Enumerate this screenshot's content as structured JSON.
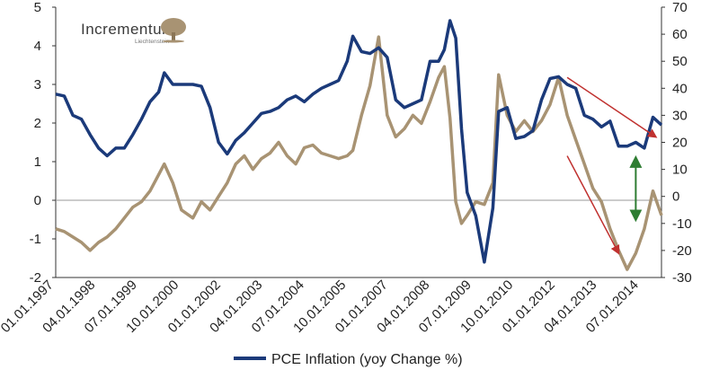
{
  "chart_data": {
    "type": "line",
    "title": "",
    "legend": {
      "position": "bottom-center",
      "entries": [
        {
          "name": "PCE Inflation (yoy Change %)",
          "color": "#1b3a7a"
        }
      ]
    },
    "logo": {
      "name": "Incrementum",
      "subtitle": "Liechtenstein"
    },
    "x_tick_labels": [
      "01.01.1997",
      "04.01.1998",
      "07.01.1999",
      "10.01.2000",
      "01.01.2002",
      "04.01.2003",
      "07.01.2004",
      "10.01.2005",
      "01.01.2007",
      "04.01.2008",
      "07.01.2009",
      "10.01.2010",
      "01.01.2012",
      "04.01.2013",
      "07.01.2014"
    ],
    "x_range": [
      "1997-01",
      "2014-09"
    ],
    "y_left": {
      "min": -2,
      "max": 5,
      "ticks": [
        -2,
        -1,
        0,
        1,
        2,
        3,
        4,
        5
      ],
      "tick_labels": [
        "-2",
        "-1",
        "0",
        "1",
        "2",
        "3",
        "4",
        "5"
      ]
    },
    "y_right": {
      "min": -30,
      "max": 70,
      "ticks": [
        -30,
        -20,
        -10,
        0,
        10,
        20,
        30,
        40,
        50,
        60,
        70
      ]
    },
    "zero_line_left": 0,
    "series": [
      {
        "name": "PCE Inflation (yoy Change %)",
        "axis": "left",
        "color": "#1b3a7a",
        "points": [
          [
            "1997-01",
            2.75
          ],
          [
            "1997-04",
            2.7
          ],
          [
            "1997-07",
            2.2
          ],
          [
            "1997-10",
            2.1
          ],
          [
            "1998-01",
            1.7
          ],
          [
            "1998-04",
            1.35
          ],
          [
            "1998-07",
            1.15
          ],
          [
            "1998-10",
            1.35
          ],
          [
            "1999-01",
            1.35
          ],
          [
            "1999-04",
            1.7
          ],
          [
            "1999-07",
            2.1
          ],
          [
            "1999-10",
            2.55
          ],
          [
            "2000-01",
            2.8
          ],
          [
            "2000-03",
            3.3
          ],
          [
            "2000-06",
            3.0
          ],
          [
            "2000-09",
            3.0
          ],
          [
            "2001-01",
            3.0
          ],
          [
            "2001-04",
            2.95
          ],
          [
            "2001-07",
            2.4
          ],
          [
            "2001-10",
            1.5
          ],
          [
            "2002-01",
            1.2
          ],
          [
            "2002-04",
            1.55
          ],
          [
            "2002-07",
            1.75
          ],
          [
            "2002-10",
            2.0
          ],
          [
            "2003-01",
            2.25
          ],
          [
            "2003-04",
            2.3
          ],
          [
            "2003-07",
            2.4
          ],
          [
            "2003-10",
            2.6
          ],
          [
            "2004-01",
            2.7
          ],
          [
            "2004-04",
            2.55
          ],
          [
            "2004-07",
            2.75
          ],
          [
            "2004-10",
            2.9
          ],
          [
            "2005-01",
            3.0
          ],
          [
            "2005-04",
            3.1
          ],
          [
            "2005-07",
            3.6
          ],
          [
            "2005-09",
            4.25
          ],
          [
            "2005-12",
            3.85
          ],
          [
            "2006-03",
            3.8
          ],
          [
            "2006-06",
            3.95
          ],
          [
            "2006-09",
            3.7
          ],
          [
            "2006-12",
            2.6
          ],
          [
            "2007-03",
            2.4
          ],
          [
            "2007-06",
            2.5
          ],
          [
            "2007-09",
            2.6
          ],
          [
            "2007-12",
            3.6
          ],
          [
            "2008-03",
            3.6
          ],
          [
            "2008-05",
            3.9
          ],
          [
            "2008-07",
            4.65
          ],
          [
            "2008-09",
            4.2
          ],
          [
            "2008-11",
            1.85
          ],
          [
            "2009-01",
            0.2
          ],
          [
            "2009-04",
            -0.4
          ],
          [
            "2009-07",
            -1.6
          ],
          [
            "2009-10",
            -0.2
          ],
          [
            "2009-12",
            2.3
          ],
          [
            "2010-03",
            2.4
          ],
          [
            "2010-06",
            1.6
          ],
          [
            "2010-09",
            1.65
          ],
          [
            "2010-12",
            1.8
          ],
          [
            "2011-03",
            2.6
          ],
          [
            "2011-06",
            3.15
          ],
          [
            "2011-09",
            3.2
          ],
          [
            "2011-12",
            3.0
          ],
          [
            "2012-03",
            2.9
          ],
          [
            "2012-06",
            2.2
          ],
          [
            "2012-09",
            2.1
          ],
          [
            "2012-12",
            1.9
          ],
          [
            "2013-03",
            2.05
          ],
          [
            "2013-06",
            1.4
          ],
          [
            "2013-09",
            1.4
          ],
          [
            "2013-12",
            1.5
          ],
          [
            "2014-03",
            1.35
          ],
          [
            "2014-06",
            2.15
          ],
          [
            "2014-09",
            1.95
          ]
        ]
      },
      {
        "name": "",
        "axis": "right",
        "color": "#a89373",
        "points": [
          [
            "1997-01",
            -12
          ],
          [
            "1997-04",
            -13
          ],
          [
            "1997-07",
            -15
          ],
          [
            "1997-10",
            -17
          ],
          [
            "1998-01",
            -20
          ],
          [
            "1998-04",
            -17
          ],
          [
            "1998-07",
            -15
          ],
          [
            "1998-10",
            -12
          ],
          [
            "1999-01",
            -8
          ],
          [
            "1999-04",
            -4
          ],
          [
            "1999-07",
            -2
          ],
          [
            "1999-10",
            2
          ],
          [
            "2000-01",
            8
          ],
          [
            "2000-03",
            12
          ],
          [
            "2000-06",
            5
          ],
          [
            "2000-09",
            -5
          ],
          [
            "2001-01",
            -8
          ],
          [
            "2001-04",
            -2
          ],
          [
            "2001-07",
            -5
          ],
          [
            "2001-10",
            0
          ],
          [
            "2002-01",
            5
          ],
          [
            "2002-04",
            12
          ],
          [
            "2002-07",
            15
          ],
          [
            "2002-10",
            10
          ],
          [
            "2003-01",
            14
          ],
          [
            "2003-04",
            16
          ],
          [
            "2003-07",
            20
          ],
          [
            "2003-10",
            15
          ],
          [
            "2004-01",
            12
          ],
          [
            "2004-04",
            18
          ],
          [
            "2004-07",
            19
          ],
          [
            "2004-10",
            16
          ],
          [
            "2005-01",
            15
          ],
          [
            "2005-04",
            14
          ],
          [
            "2005-07",
            15
          ],
          [
            "2005-09",
            17
          ],
          [
            "2005-12",
            30
          ],
          [
            "2006-03",
            41
          ],
          [
            "2006-06",
            59
          ],
          [
            "2006-09",
            30
          ],
          [
            "2006-12",
            22
          ],
          [
            "2007-03",
            25
          ],
          [
            "2007-06",
            30
          ],
          [
            "2007-09",
            27
          ],
          [
            "2007-12",
            35
          ],
          [
            "2008-03",
            44
          ],
          [
            "2008-05",
            48
          ],
          [
            "2008-07",
            29
          ],
          [
            "2008-09",
            -2
          ],
          [
            "2008-11",
            -10
          ],
          [
            "2009-01",
            -7
          ],
          [
            "2009-04",
            -2
          ],
          [
            "2009-07",
            -3
          ],
          [
            "2009-10",
            5
          ],
          [
            "2009-12",
            45
          ],
          [
            "2010-03",
            30
          ],
          [
            "2010-06",
            24
          ],
          [
            "2010-09",
            28
          ],
          [
            "2010-12",
            24
          ],
          [
            "2011-03",
            28
          ],
          [
            "2011-06",
            34
          ],
          [
            "2011-09",
            44
          ],
          [
            "2011-12",
            30
          ],
          [
            "2012-03",
            21
          ],
          [
            "2012-06",
            12
          ],
          [
            "2012-09",
            3
          ],
          [
            "2012-12",
            -2
          ],
          [
            "2013-03",
            -12
          ],
          [
            "2013-06",
            -20
          ],
          [
            "2013-09",
            -27
          ],
          [
            "2013-12",
            -21
          ],
          [
            "2014-03",
            -12
          ],
          [
            "2014-06",
            2
          ],
          [
            "2014-09",
            -7
          ]
        ]
      }
    ],
    "annotations": [
      {
        "type": "arrow",
        "color": "#c0312f",
        "from": [
          "2011-12",
          44
        ],
        "to": [
          "2014-07",
          22
        ],
        "axis": "right"
      },
      {
        "type": "arrow",
        "color": "#c0312f",
        "from": [
          "2011-12",
          15
        ],
        "to": [
          "2013-06",
          -21
        ],
        "axis": "right"
      },
      {
        "type": "double-arrow",
        "color": "#2e7d32",
        "x": "2013-12",
        "y_from": 1.1,
        "y_to": -0.5,
        "axis": "left"
      }
    ]
  }
}
